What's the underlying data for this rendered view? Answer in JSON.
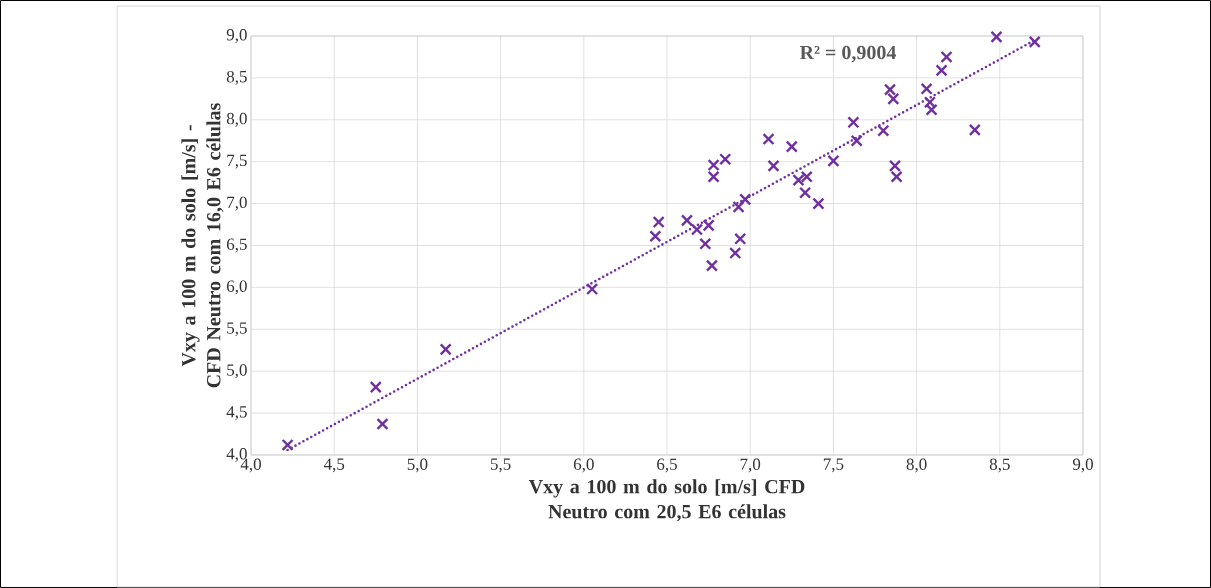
{
  "chart_data": {
    "type": "scatter",
    "xlabel": "Vxy a 100 m do solo [m/s] CFD Neutro com 20,5 E6 células",
    "ylabel": "Vxy a 100 m do solo [m/s] - CFD Neutro com 16,0 E6 células",
    "annotations": [
      "R² = 0,9004"
    ],
    "xlim": [
      4,
      9
    ],
    "ylim": [
      4,
      9
    ],
    "xticks": [
      {
        "value": 4,
        "label": "4,0"
      },
      {
        "value": 4.5,
        "label": "4,5"
      },
      {
        "value": 5,
        "label": "5,0"
      },
      {
        "value": 5.5,
        "label": "5,5"
      },
      {
        "value": 6,
        "label": "6,0"
      },
      {
        "value": 6.5,
        "label": "6,5"
      },
      {
        "value": 7,
        "label": "7,0"
      },
      {
        "value": 7.5,
        "label": "7,5"
      },
      {
        "value": 8,
        "label": "8,0"
      },
      {
        "value": 8.5,
        "label": "8,5"
      },
      {
        "value": 9,
        "label": "9,0"
      }
    ],
    "yticks": [
      {
        "value": 4,
        "label": "4,0"
      },
      {
        "value": 4.5,
        "label": "4,5"
      },
      {
        "value": 5,
        "label": "5,0"
      },
      {
        "value": 5.5,
        "label": "5,5"
      },
      {
        "value": 6,
        "label": "6,0"
      },
      {
        "value": 6.5,
        "label": "6,5"
      },
      {
        "value": 7,
        "label": "7,0"
      },
      {
        "value": 7.5,
        "label": "7,5"
      },
      {
        "value": 8,
        "label": "8,0"
      },
      {
        "value": 8.5,
        "label": "8,5"
      },
      {
        "value": 9,
        "label": "9,0"
      }
    ],
    "grid": true,
    "marker": "cross",
    "series": [
      {
        "color": "#7030a0",
        "x": [
          4.22,
          4.75,
          4.79,
          5.17,
          6.05,
          6.45,
          6.43,
          6.62,
          6.68,
          6.75,
          6.73,
          6.77,
          6.78,
          6.78,
          6.85,
          6.93,
          6.97,
          6.94,
          6.91,
          7.11,
          7.14,
          7.25,
          7.29,
          7.34,
          7.33,
          7.41,
          7.5,
          7.62,
          7.64,
          7.8,
          7.84,
          7.86,
          7.87,
          7.88,
          8.06,
          8.08,
          8.09,
          8.15,
          8.18,
          8.35,
          8.48,
          8.71
        ],
        "values": [
          4.12,
          4.81,
          4.37,
          5.26,
          5.98,
          6.78,
          6.61,
          6.8,
          6.69,
          6.74,
          6.52,
          6.26,
          7.46,
          7.32,
          7.53,
          6.96,
          7.05,
          6.58,
          6.41,
          7.77,
          7.45,
          7.68,
          7.28,
          7.32,
          7.13,
          7.0,
          7.51,
          7.97,
          7.75,
          7.87,
          8.36,
          8.25,
          7.45,
          7.32,
          8.37,
          8.21,
          8.12,
          8.59,
          8.75,
          7.88,
          8.99,
          8.93
        ]
      },
      {
        "type": "line",
        "color": "#7030a0",
        "marker": "none",
        "line_style": "dotted",
        "x": [
          4.22,
          8.71
        ],
        "values": [
          4.06,
          8.95
        ]
      }
    ]
  }
}
